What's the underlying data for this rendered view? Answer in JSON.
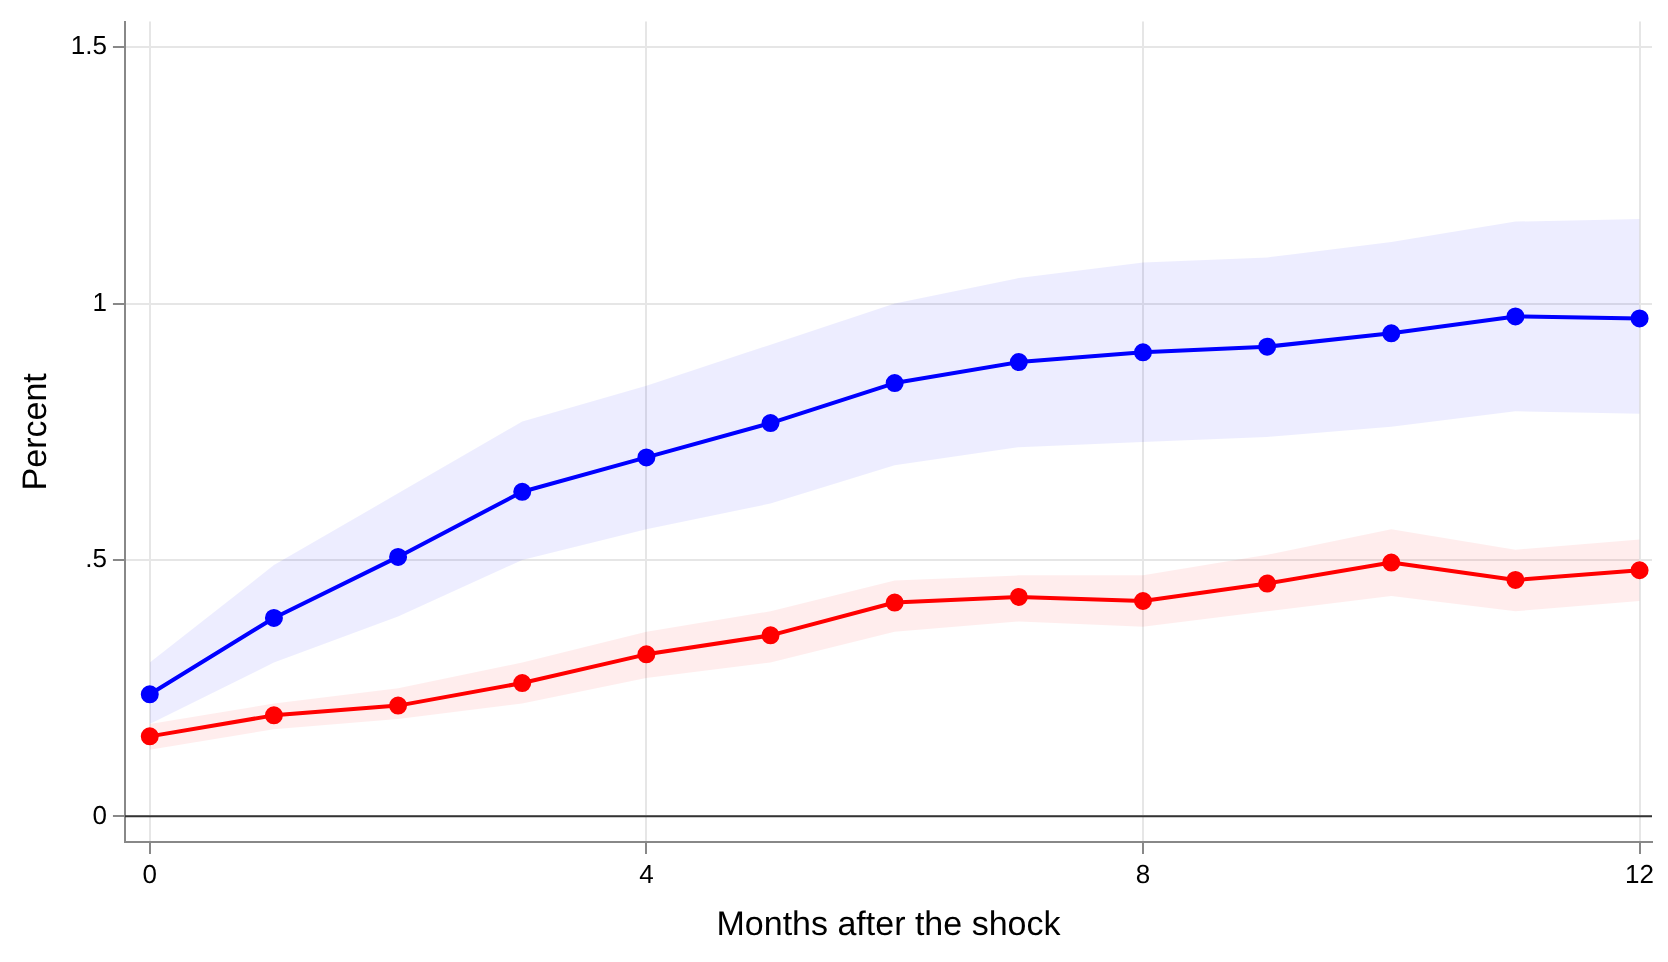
{
  "chart_data": {
    "type": "line",
    "xlabel": "Months after the shock",
    "ylabel": "Percent",
    "x": [
      0,
      1,
      2,
      3,
      4,
      5,
      6,
      7,
      8,
      9,
      10,
      11,
      12
    ],
    "series": [
      {
        "color": "#0000ff",
        "values": [
          0.238,
          0.387,
          0.506,
          0.633,
          0.7,
          0.767,
          0.845,
          0.886,
          0.905,
          0.916,
          0.942,
          0.975,
          0.971
        ],
        "lower": [
          0.18,
          0.3,
          0.39,
          0.5,
          0.56,
          0.61,
          0.685,
          0.72,
          0.73,
          0.74,
          0.76,
          0.79,
          0.785
        ],
        "upper": [
          0.3,
          0.49,
          0.63,
          0.77,
          0.84,
          0.92,
          1.0,
          1.05,
          1.08,
          1.09,
          1.12,
          1.16,
          1.165
        ]
      },
      {
        "color": "#ff0000",
        "values": [
          0.156,
          0.197,
          0.216,
          0.26,
          0.316,
          0.353,
          0.417,
          0.428,
          0.42,
          0.454,
          0.495,
          0.461,
          0.48
        ],
        "lower": [
          0.13,
          0.17,
          0.19,
          0.22,
          0.27,
          0.3,
          0.36,
          0.38,
          0.37,
          0.4,
          0.43,
          0.4,
          0.42
        ],
        "upper": [
          0.18,
          0.22,
          0.25,
          0.3,
          0.36,
          0.4,
          0.46,
          0.47,
          0.47,
          0.51,
          0.56,
          0.52,
          0.54
        ]
      }
    ],
    "xlim": [
      -0.2,
      12.1
    ],
    "xticks": [
      0,
      4,
      8,
      12
    ],
    "ylim": [
      -0.05,
      1.55
    ],
    "yticks": [
      0,
      {
        "value": 0.5,
        "label": ".5"
      },
      1,
      1.5
    ],
    "ref_lines": [
      {
        "axis": "y",
        "value": 0,
        "color": "#333333"
      }
    ],
    "grid": true,
    "legend": false,
    "marker": "circle",
    "line_style": "solid"
  }
}
